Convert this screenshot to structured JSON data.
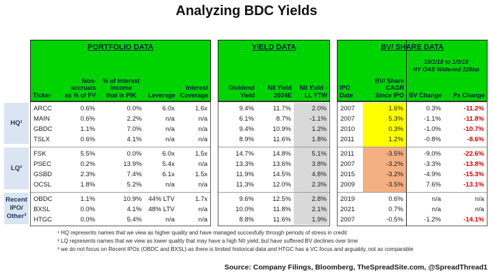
{
  "title": "Analyzing BDC Yields",
  "colors": {
    "green": "#00d400",
    "yellow": "#ffff00",
    "orange": "#f4b083",
    "gray": "#d9d9d9",
    "red": "#cc0000",
    "blue": "#dbe5f1",
    "navy": "#17365d"
  },
  "chart_data": {
    "type": "table",
    "title": "Analyzing BDC Yields",
    "sections": {
      "portfolio": {
        "title": "PORTFOLIO DATA",
        "columns": [
          "Ticker",
          "Non-\naccruals\nas % of FV",
          "% of Interest\nIncome\nthat is PIK",
          "Leverage",
          "Interest\nCoverage"
        ]
      },
      "yield": {
        "title": "YIELD DATA",
        "columns": [
          "Dividend\nYield",
          "NII Yield\n2024E",
          "NII Yield -\nLL YTW"
        ]
      },
      "bv": {
        "title": "BV/ SHARE DATA",
        "note": "10/1/18 to 1/3/19\nHY OAS Widened 228bp",
        "columns": [
          "IPO\nDate",
          "BV/ Share\nCAGR\nSince IPO",
          "BV Change",
          "Px Change"
        ]
      }
    },
    "groups": [
      {
        "label": "HQ¹",
        "cagr_highlight": "yellow",
        "rows": [
          {
            "ticker": "ARCC",
            "non_accruals": "0.6%",
            "pik": "0.0%",
            "leverage": "6.0x",
            "coverage": "1.6x",
            "div_yield": "9.4%",
            "nii_yield": "11.7%",
            "nii_ll_ytw": "2.0%",
            "ipo_date": "2007",
            "cagr": "1.6%",
            "bv_change": "0.3%",
            "px_change": "-11.2%"
          },
          {
            "ticker": "MAIN",
            "non_accruals": "0.6%",
            "pik": "2.2%",
            "leverage": "n/a",
            "coverage": "n/a",
            "div_yield": "6.1%",
            "nii_yield": "8.7%",
            "nii_ll_ytw": "-1.1%",
            "ipo_date": "2007",
            "cagr": "5.3%",
            "bv_change": "-1.1%",
            "px_change": "-11.8%"
          },
          {
            "ticker": "GBDC",
            "non_accruals": "1.1%",
            "pik": "7.0%",
            "leverage": "n/a",
            "coverage": "n/a",
            "div_yield": "9.4%",
            "nii_yield": "10.9%",
            "nii_ll_ytw": "1.2%",
            "ipo_date": "2010",
            "cagr": "0.3%",
            "bv_change": "-1.0%",
            "px_change": "-10.7%"
          },
          {
            "ticker": "TSLX",
            "non_accruals": "0.6%",
            "pik": "4.1%",
            "leverage": "n/a",
            "coverage": "n/a",
            "div_yield": "8.9%",
            "nii_yield": "11.6%",
            "nii_ll_ytw": "1.8%",
            "ipo_date": "2011",
            "cagr": "1.2%",
            "bv_change": "-0.8%",
            "px_change": "-8.6%"
          }
        ]
      },
      {
        "label": "LQ²",
        "cagr_highlight": "orange",
        "rows": [
          {
            "ticker": "FSK",
            "non_accruals": "5.5%",
            "pik": "0.0%",
            "leverage": "6.0x",
            "coverage": "1.5x",
            "div_yield": "14.7%",
            "nii_yield": "14.8%",
            "nii_ll_ytw": "5.1%",
            "ipo_date": "2011",
            "cagr": "-3.5%",
            "bv_change": "-9.0%",
            "px_change": "-22.6%"
          },
          {
            "ticker": "PSEC",
            "non_accruals": "0.2%",
            "pik": "13.9%",
            "leverage": "5.4x",
            "coverage": "n/a",
            "div_yield": "13.3%",
            "nii_yield": "13.6%",
            "nii_ll_ytw": "3.8%",
            "ipo_date": "2007",
            "cagr": "-3.2%",
            "bv_change": "-3.3%",
            "px_change": "-13.8%"
          },
          {
            "ticker": "GSBD",
            "non_accruals": "2.3%",
            "pik": "7.4%",
            "leverage": "6.1x",
            "coverage": "1.5x",
            "div_yield": "11.9%",
            "nii_yield": "14.5%",
            "nii_ll_ytw": "4.8%",
            "ipo_date": "2015",
            "cagr": "-3.2%",
            "bv_change": "-4.9%",
            "px_change": "-15.3%"
          },
          {
            "ticker": "OCSL",
            "non_accruals": "1.8%",
            "pik": "5.2%",
            "leverage": "n/a",
            "coverage": "n/a",
            "div_yield": "11.3%",
            "nii_yield": "12.0%",
            "nii_ll_ytw": "2.3%",
            "ipo_date": "2009",
            "cagr": "-3.5%",
            "bv_change": "7.6%",
            "px_change": "-13.1%"
          }
        ]
      },
      {
        "label": "Recent\nIPO/\nOther³",
        "cagr_highlight": null,
        "rows": [
          {
            "ticker": "OBDC",
            "non_accruals": "1.1%",
            "pik": "10.9%",
            "leverage": "44% LTV",
            "coverage": "1.7x",
            "div_yield": "9.6%",
            "nii_yield": "12.5%",
            "nii_ll_ytw": "2.8%",
            "ipo_date": "2019",
            "cagr": "0.6%",
            "bv_change": "n/a",
            "px_change": "n/a"
          },
          {
            "ticker": "BXSL",
            "non_accruals": "0.0%",
            "pik": "4.1%",
            "leverage": "48% LTV",
            "coverage": "n/a",
            "div_yield": "10.0%",
            "nii_yield": "11.8%",
            "nii_ll_ytw": "2.1%",
            "ipo_date": "2021",
            "cagr": "0.7%",
            "bv_change": "n/a",
            "px_change": "n/a"
          },
          {
            "ticker": "HTGC",
            "non_accruals": "0.0%",
            "pik": "5.4%",
            "leverage": "n/a",
            "coverage": "n/a",
            "div_yield": "8.8%",
            "nii_yield": "11.6%",
            "nii_ll_ytw": "1.9%",
            "ipo_date": "2007",
            "cagr": "-0.5%",
            "bv_change": "-1.2%",
            "px_change": "-14.1%"
          }
        ]
      }
    ],
    "footnotes": [
      "¹ HQ represents names that we view as higher quality and have managed succesfully through periods of stress in credit",
      "² LQ represents names that we view as lower quality that may have a high NII yield, but have suffered BV declines over time",
      "³ we do not focus on Recent IPOs (OBDC and BXSL) as there is limited historical data and HTGC has a VC focus and arguably, not as comparable"
    ],
    "source": "Source: Company Filings, Bloomberg, TheSpreadSite.com, @SpreadThread1"
  }
}
